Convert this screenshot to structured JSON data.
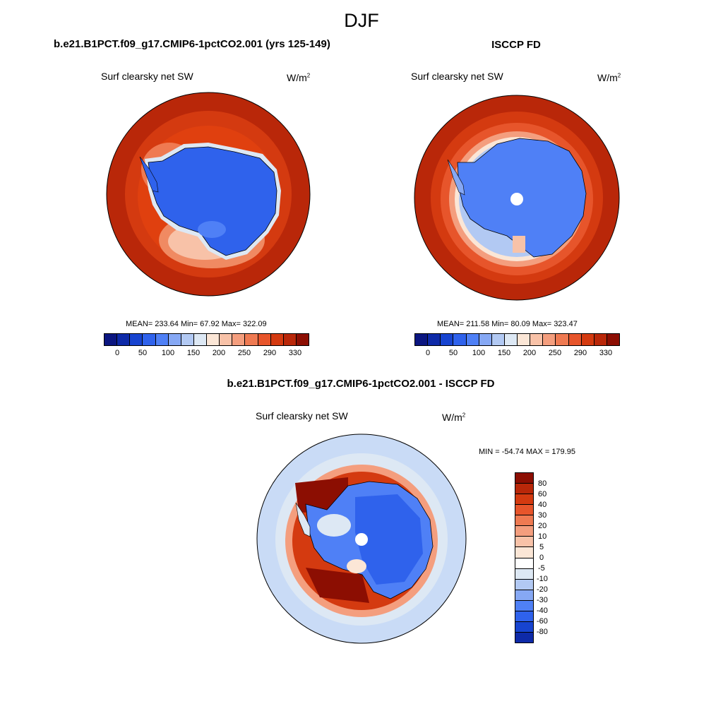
{
  "figure": {
    "title": "DJF",
    "panel_a": {
      "title": "b.e21.B1PCT.f09_g17.CMIP6-1pctCO2.001 (yrs 125-149)",
      "variable": "Surf clearsky net SW",
      "units_base": "W/m",
      "units_exp": "2",
      "stats": "MEAN= 233.64  Min=  67.92  Max= 322.09"
    },
    "panel_b": {
      "title": "ISCCP FD",
      "variable": "Surf clearsky net SW",
      "units_base": "W/m",
      "units_exp": "2",
      "stats": "MEAN= 211.58  Min=  80.09  Max= 323.47"
    },
    "panel_c": {
      "title": "b.e21.B1PCT.f09_g17.CMIP6-1pctCO2.001 - ISCCP FD",
      "variable": "Surf clearsky net SW",
      "units_base": "W/m",
      "units_exp": "2",
      "stats": "MIN = -54.74 MAX = 179.95"
    }
  },
  "chart_data": [
    {
      "type": "map",
      "projection": "south polar stereographic",
      "title": "b.e21.B1PCT.f09_g17.CMIP6-1pctCO2.001 (yrs 125-149)",
      "variable": "Surf clearsky net SW",
      "units": "W/m2",
      "mean": 233.64,
      "min": 67.92,
      "max": 322.09,
      "colorbar_ticks": [
        "0",
        "50",
        "100",
        "150",
        "200",
        "250",
        "290",
        "330"
      ]
    },
    {
      "type": "map",
      "projection": "south polar stereographic",
      "title": "ISCCP FD",
      "variable": "Surf clearsky net SW",
      "units": "W/m2",
      "mean": 211.58,
      "min": 80.09,
      "max": 323.47,
      "colorbar_ticks": [
        "0",
        "50",
        "100",
        "150",
        "200",
        "250",
        "290",
        "330"
      ]
    },
    {
      "type": "map",
      "projection": "south polar stereographic",
      "title": "b.e21.B1PCT.f09_g17.CMIP6-1pctCO2.001 - ISCCP FD",
      "variable": "Surf clearsky net SW",
      "units": "W/m2",
      "min": -54.74,
      "max": 179.95,
      "colorbar_ticks": [
        "80",
        "60",
        "40",
        "30",
        "20",
        "10",
        "5",
        "0",
        "-5",
        "-10",
        "-20",
        "-30",
        "-40",
        "-60",
        "-80"
      ]
    }
  ],
  "colors": {
    "abs_scale": [
      "#0b1680",
      "#0e2aa8",
      "#1744d0",
      "#2f62ec",
      "#4f80f6",
      "#86a8f4",
      "#b2c9f3",
      "#dde8f4",
      "#fbe6d6",
      "#f8c2a8",
      "#f49e7e",
      "#ef7a52",
      "#e7552b",
      "#d43a10",
      "#b92709",
      "#8c0e02"
    ],
    "diff_scale": [
      "#8c0e02",
      "#b92709",
      "#d43a10",
      "#e7552b",
      "#ef7a52",
      "#f49e7e",
      "#f8c2a8",
      "#fbe6d6",
      "#ffffff",
      "#dde8f4",
      "#b2c9f3",
      "#86a8f4",
      "#4f80f6",
      "#2f62ec",
      "#1744d0",
      "#0e2aa8"
    ],
    "ocean_warm": "#c22f0e",
    "ocean_mid": "#e0400f",
    "ice_blue": "#3e6df0",
    "diff_bg": "#c9dbf6"
  }
}
